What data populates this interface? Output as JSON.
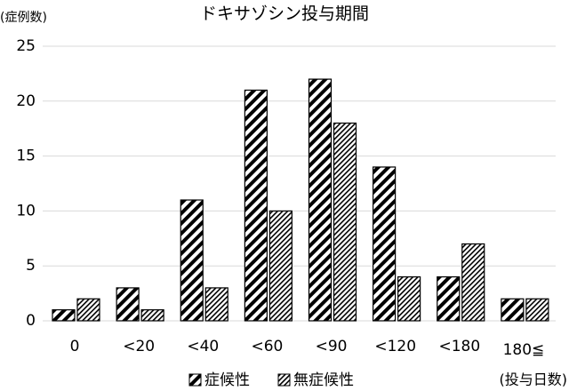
{
  "chart_data": {
    "type": "bar",
    "title": "ドキサゾシン投与期間",
    "y_label": "(症例数)",
    "x_label": "(投与日数)",
    "categories": [
      "0",
      "<20",
      "<40",
      "<60",
      "<90",
      "<120",
      "<180",
      "180≦"
    ],
    "series": [
      {
        "name": "症候性",
        "values": [
          1,
          3,
          11,
          21,
          22,
          14,
          4,
          2
        ]
      },
      {
        "name": "無症候性",
        "values": [
          2,
          1,
          3,
          10,
          18,
          4,
          7,
          2
        ]
      }
    ],
    "ylim": [
      0,
      25
    ],
    "yticks": [
      0,
      5,
      10,
      15,
      20,
      25
    ],
    "grid": true
  }
}
